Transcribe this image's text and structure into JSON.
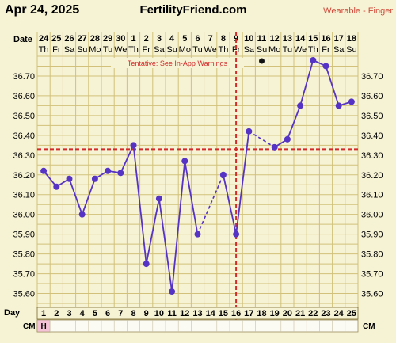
{
  "header": {
    "date": "Apr 24, 2025",
    "site": "FertilityFriend.com",
    "device": "Wearable - Finger"
  },
  "labels": {
    "date_row": "Date",
    "day_row": "Day",
    "cm_row": "CM",
    "tentative": "Tentative: See In-App Warnings"
  },
  "colors": {
    "line": "#5533c5",
    "point": "#5533c5",
    "red": "#d32a2a",
    "grid": "#d1c17a",
    "plot_bg": "#f6f2d4",
    "cm_h_bg": "#f4c4d6"
  },
  "chart_data": {
    "type": "line",
    "title": "",
    "xlabel": "Day",
    "ylabel": "",
    "ylim": [
      35.53,
      36.8
    ],
    "yticks": [
      "35.60",
      "35.70",
      "35.80",
      "35.90",
      "36.00",
      "36.10",
      "36.20",
      "36.30",
      "36.40",
      "36.50",
      "36.60",
      "36.70"
    ],
    "date_numbers": [
      "24",
      "25",
      "26",
      "27",
      "28",
      "29",
      "30",
      "1",
      "2",
      "3",
      "4",
      "5",
      "6",
      "7",
      "8",
      "9",
      "10",
      "11",
      "12",
      "13",
      "14",
      "15",
      "16",
      "17",
      "18"
    ],
    "weekdays": [
      "Th",
      "Fr",
      "Sa",
      "Su",
      "Mo",
      "Tu",
      "We",
      "Th",
      "Fr",
      "Sa",
      "Su",
      "Mo",
      "Tu",
      "We",
      "Th",
      "Fr",
      "Sa",
      "Su",
      "Mo",
      "Tu",
      "We",
      "Th",
      "Fr",
      "Sa",
      "Su"
    ],
    "days": [
      "1",
      "2",
      "3",
      "4",
      "5",
      "6",
      "7",
      "8",
      "9",
      "10",
      "11",
      "12",
      "13",
      "14",
      "15",
      "16",
      "17",
      "18",
      "19",
      "20",
      "21",
      "22",
      "23",
      "24",
      "25"
    ],
    "temps": [
      36.22,
      36.14,
      36.18,
      36.0,
      36.18,
      36.22,
      36.21,
      36.35,
      35.75,
      36.08,
      35.61,
      36.27,
      35.9,
      null,
      36.2,
      35.9,
      36.42,
      null,
      36.34,
      36.38,
      36.55,
      36.78,
      36.75,
      36.55,
      36.57
    ],
    "solid_segments": [
      [
        1,
        2
      ],
      [
        2,
        3
      ],
      [
        3,
        4
      ],
      [
        4,
        5
      ],
      [
        5,
        6
      ],
      [
        6,
        7
      ],
      [
        7,
        8
      ],
      [
        8,
        9
      ],
      [
        9,
        10
      ],
      [
        10,
        11
      ],
      [
        11,
        12
      ],
      [
        12,
        13
      ],
      [
        15,
        16
      ],
      [
        16,
        17
      ],
      [
        19,
        20
      ],
      [
        20,
        21
      ],
      [
        21,
        22
      ],
      [
        22,
        23
      ],
      [
        23,
        24
      ],
      [
        24,
        25
      ]
    ],
    "dashed_segments": [
      [
        13,
        15
      ],
      [
        17,
        19
      ]
    ],
    "coverline": 36.33,
    "ovulation_day": 16,
    "marker_day": 18,
    "cm": [
      "H",
      "",
      "",
      "",
      "",
      "",
      "",
      "",
      "",
      "",
      "",
      "",
      "",
      "",
      "",
      "",
      "",
      "",
      "",
      "",
      "",
      "",
      "",
      "",
      ""
    ]
  }
}
